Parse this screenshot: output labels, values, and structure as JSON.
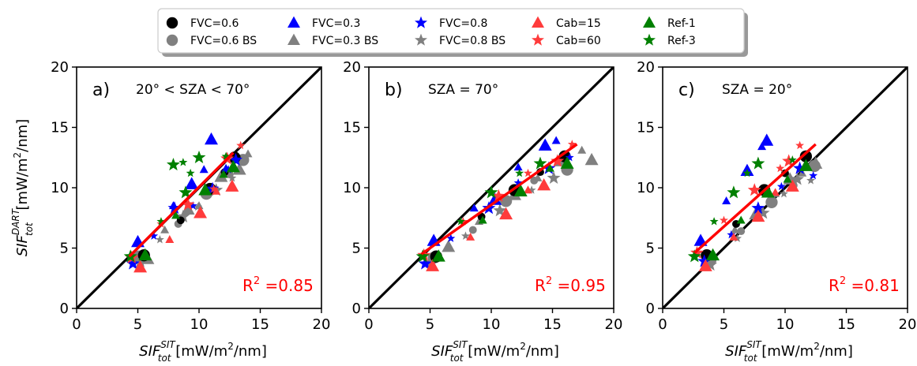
{
  "legend": {
    "entries": [
      {
        "label": "FVC=0.6",
        "color": "#000000",
        "marker": "circle"
      },
      {
        "label": "FVC=0.6 BS",
        "color": "#808080",
        "marker": "circle"
      },
      {
        "label": "FVC=0.3",
        "color": "#0000ff",
        "marker": "triangle"
      },
      {
        "label": "FVC=0.3 BS",
        "color": "#808080",
        "marker": "triangle"
      },
      {
        "label": "FVC=0.8",
        "color": "#0000ff",
        "marker": "star"
      },
      {
        "label": "FVC=0.8 BS",
        "color": "#808080",
        "marker": "star"
      },
      {
        "label": "Cab=15",
        "color": "#ff3b3b",
        "marker": "triangle"
      },
      {
        "label": "Cab=60",
        "color": "#ff3b3b",
        "marker": "star"
      },
      {
        "label": "Ref-1",
        "color": "#008000",
        "marker": "triangle"
      },
      {
        "label": "Ref-3",
        "color": "#008000",
        "marker": "star"
      }
    ]
  },
  "axes": {
    "ylabel_main": "SIF",
    "ylabel_sub": "tot",
    "ylabel_sup": "DART",
    "ylabel_unit": " [mW/m",
    "ylabel_unit_sup": "2",
    "ylabel_unit_end": "/nm]",
    "xlabel_main": "SIF",
    "xlabel_sub": "tot",
    "xlabel_sup": "SIT",
    "xlabel_unit": " [mW/m",
    "xlabel_unit_sup": "2",
    "xlabel_unit_end": "/nm]",
    "ticks": [
      "0",
      "5",
      "10",
      "15",
      "20"
    ]
  },
  "colors": {
    "one_to_one": "#000000",
    "regression": "#ff0000",
    "r2_text": "#ff0000"
  },
  "chart_data": [
    {
      "type": "scatter",
      "panel": "a)",
      "annotation": "20° < SZA < 70°",
      "r2_label": "R",
      "r2_sup": "2",
      "r2_value": " =0.85",
      "xlim": [
        0,
        20
      ],
      "ylim": [
        0,
        20
      ],
      "one_to_one": [
        [
          0,
          0
        ],
        [
          20,
          20
        ]
      ],
      "regression": [
        [
          4.3,
          4.3
        ],
        [
          12.8,
          12.9
        ]
      ],
      "series": [
        {
          "name": "FVC=0.6",
          "points": [
            [
              5.5,
              4.4
            ],
            [
              8.5,
              7.3
            ],
            [
              10.9,
              9.9
            ],
            [
              12.1,
              11.3
            ],
            [
              12.9,
              12.5
            ]
          ]
        },
        {
          "name": "FVC=0.6 BS",
          "points": [
            [
              5.1,
              4.3
            ],
            [
              8.3,
              7.0
            ],
            [
              10.6,
              9.5
            ],
            [
              12.5,
              11.1
            ],
            [
              13.6,
              12.3
            ]
          ]
        },
        {
          "name": "FVC=0.3",
          "points": [
            [
              5.0,
              5.5
            ],
            [
              7.9,
              8.5
            ],
            [
              9.4,
              10.3
            ],
            [
              10.4,
              11.5
            ],
            [
              11.0,
              14.0
            ],
            [
              12.2,
              11.6
            ]
          ]
        },
        {
          "name": "FVC=0.3 BS",
          "points": [
            [
              5.8,
              4.1
            ],
            [
              7.2,
              6.5
            ],
            [
              9.1,
              8.2
            ],
            [
              10.0,
              8.5
            ],
            [
              11.8,
              10.9
            ],
            [
              12.5,
              11.1
            ],
            [
              13.3,
              11.5
            ],
            [
              14.0,
              12.8
            ]
          ]
        },
        {
          "name": "FVC=0.8",
          "points": [
            [
              4.6,
              3.7
            ],
            [
              6.3,
              6.0
            ],
            [
              8.0,
              8.3
            ],
            [
              9.5,
              8.5
            ],
            [
              11.1,
              9.9
            ],
            [
              12.4,
              11.5
            ],
            [
              13.0,
              12.3
            ]
          ]
        },
        {
          "name": "FVC=0.8 BS",
          "points": [
            [
              5.2,
              3.9
            ],
            [
              6.8,
              5.7
            ],
            [
              8.7,
              7.6
            ],
            [
              9.9,
              8.4
            ],
            [
              11.4,
              9.8
            ],
            [
              12.7,
              10.8
            ]
          ]
        },
        {
          "name": "Cab=15",
          "points": [
            [
              5.2,
              3.4
            ],
            [
              7.6,
              5.7
            ],
            [
              10.1,
              7.9
            ],
            [
              11.4,
              9.7
            ],
            [
              12.7,
              10.1
            ]
          ]
        },
        {
          "name": "Cab=60",
          "points": [
            [
              4.5,
              4.2
            ],
            [
              6.9,
              7.0
            ],
            [
              9.1,
              8.6
            ],
            [
              11.2,
              9.9
            ],
            [
              12.3,
              12.4
            ],
            [
              13.4,
              13.5
            ]
          ]
        },
        {
          "name": "Ref-1",
          "points": [
            [
              5.6,
              4.4
            ],
            [
              8.1,
              7.7
            ],
            [
              10.5,
              9.8
            ],
            [
              12.0,
              11.1
            ],
            [
              12.8,
              11.7
            ]
          ]
        },
        {
          "name": "Ref-3",
          "points": [
            [
              4.4,
              4.3
            ],
            [
              6.9,
              7.2
            ],
            [
              8.9,
              9.6
            ],
            [
              9.3,
              11.2
            ],
            [
              7.9,
              11.9
            ],
            [
              8.7,
              12.1
            ],
            [
              10.0,
              12.5
            ],
            [
              12.2,
              12.6
            ]
          ]
        }
      ]
    },
    {
      "type": "scatter",
      "panel": "b)",
      "annotation": "SZA = 70°",
      "r2_label": "R",
      "r2_sup": "2",
      "r2_value": " =0.95",
      "xlim": [
        0,
        20
      ],
      "ylim": [
        0,
        20
      ],
      "one_to_one": [
        [
          0,
          0
        ],
        [
          20,
          20
        ]
      ],
      "regression": [
        [
          4.3,
          4.5
        ],
        [
          17.0,
          13.6
        ]
      ],
      "series": [
        {
          "name": "FVC=0.6",
          "points": [
            [
              5.5,
              4.3
            ],
            [
              9.2,
              7.6
            ],
            [
              11.9,
              9.8
            ],
            [
              14.0,
              11.3
            ],
            [
              16.0,
              12.6
            ]
          ]
        },
        {
          "name": "FVC=0.6 BS",
          "points": [
            [
              5.3,
              4.2
            ],
            [
              8.5,
              6.5
            ],
            [
              11.2,
              8.9
            ],
            [
              13.5,
              10.6
            ],
            [
              16.2,
              11.5
            ]
          ]
        },
        {
          "name": "FVC=0.3",
          "points": [
            [
              5.3,
              5.6
            ],
            [
              8.6,
              8.3
            ],
            [
              10.3,
              9.0
            ],
            [
              12.2,
              11.7
            ],
            [
              14.4,
              13.5
            ],
            [
              15.3,
              13.9
            ]
          ]
        },
        {
          "name": "FVC=0.3 BS",
          "points": [
            [
              6.5,
              5.1
            ],
            [
              9.0,
              7.2
            ],
            [
              11.9,
              9.4
            ],
            [
              13.8,
              10.8
            ],
            [
              15.7,
              12.2
            ],
            [
              17.4,
              13.1
            ],
            [
              18.2,
              12.3
            ]
          ]
        },
        {
          "name": "FVC=0.8",
          "points": [
            [
              4.6,
              3.7
            ],
            [
              6.7,
              5.8
            ],
            [
              9.8,
              8.3
            ],
            [
              12.2,
              10.4
            ],
            [
              14.7,
              11.6
            ],
            [
              16.4,
              12.5
            ]
          ]
        },
        {
          "name": "FVC=0.8 BS",
          "points": [
            [
              5.0,
              3.8
            ],
            [
              7.9,
              6.0
            ],
            [
              10.7,
              8.1
            ],
            [
              13.3,
              9.8
            ],
            [
              15.1,
              10.8
            ]
          ]
        },
        {
          "name": "Cab=15",
          "points": [
            [
              5.2,
              3.5
            ],
            [
              8.3,
              5.9
            ],
            [
              11.2,
              7.8
            ],
            [
              13.0,
              9.8
            ],
            [
              14.3,
              10.2
            ]
          ]
        },
        {
          "name": "Cab=60",
          "points": [
            [
              4.5,
              4.4
            ],
            [
              7.7,
              7.2
            ],
            [
              10.6,
              9.3
            ],
            [
              13.0,
              11.2
            ],
            [
              15.4,
              12.2
            ],
            [
              16.6,
              13.6
            ]
          ]
        },
        {
          "name": "Ref-1",
          "points": [
            [
              5.7,
              4.3
            ],
            [
              9.3,
              7.3
            ],
            [
              12.4,
              9.7
            ],
            [
              14.8,
              11.6
            ],
            [
              16.2,
              12.0
            ]
          ]
        },
        {
          "name": "Ref-3",
          "points": [
            [
              4.4,
              4.3
            ],
            [
              7.5,
              7.2
            ],
            [
              10.0,
              9.6
            ],
            [
              12.3,
              11.2
            ],
            [
              14.0,
              12.0
            ]
          ]
        }
      ]
    },
    {
      "type": "scatter",
      "panel": "c)",
      "annotation": "SZA = 20°",
      "r2_label": "R",
      "r2_sup": "2",
      "r2_value": " =0.81",
      "xlim": [
        0,
        20
      ],
      "ylim": [
        0,
        20
      ],
      "one_to_one": [
        [
          0,
          0
        ],
        [
          20,
          20
        ]
      ],
      "regression": [
        [
          2.6,
          4.6
        ],
        [
          12.5,
          13.6
        ]
      ],
      "series": [
        {
          "name": "FVC=0.6",
          "points": [
            [
              3.6,
              4.4
            ],
            [
              6.0,
              7.0
            ],
            [
              8.3,
              9.8
            ],
            [
              10.0,
              11.2
            ],
            [
              11.7,
              12.6
            ]
          ]
        },
        {
          "name": "FVC=0.6 BS",
          "points": [
            [
              3.9,
              4.0
            ],
            [
              6.4,
              6.4
            ],
            [
              8.9,
              8.8
            ],
            [
              10.7,
              10.2
            ],
            [
              12.4,
              11.8
            ]
          ]
        },
        {
          "name": "FVC=0.3",
          "points": [
            [
              3.1,
              5.6
            ],
            [
              5.2,
              8.9
            ],
            [
              6.9,
              11.4
            ],
            [
              8.1,
              13.4
            ],
            [
              8.5,
              13.9
            ]
          ]
        },
        {
          "name": "FVC=0.3 BS",
          "points": [
            [
              3.6,
              3.9
            ],
            [
              5.9,
              6.5
            ],
            [
              7.6,
              7.8
            ],
            [
              9.2,
              9.5
            ],
            [
              10.4,
              10.7
            ],
            [
              11.4,
              11.2
            ],
            [
              12.5,
              12.0
            ]
          ]
        },
        {
          "name": "FVC=0.8",
          "points": [
            [
              3.4,
              3.9
            ],
            [
              5.6,
              6.1
            ],
            [
              7.8,
              8.3
            ],
            [
              9.7,
              10.1
            ],
            [
              11.2,
              11.6
            ],
            [
              12.3,
              11.0
            ]
          ]
        },
        {
          "name": "FVC=0.8 BS",
          "points": [
            [
              3.9,
              3.6
            ],
            [
              6.1,
              5.8
            ],
            [
              8.2,
              7.9
            ],
            [
              9.9,
              9.5
            ],
            [
              11.0,
              10.7
            ],
            [
              12.1,
              10.6
            ]
          ]
        },
        {
          "name": "Cab=15",
          "points": [
            [
              3.5,
              3.5
            ],
            [
              5.8,
              5.9
            ],
            [
              7.8,
              7.6
            ],
            [
              9.2,
              9.6
            ],
            [
              10.6,
              10.1
            ]
          ]
        },
        {
          "name": "Cab=60",
          "points": [
            [
              2.8,
              4.6
            ],
            [
              5.0,
              7.3
            ],
            [
              7.5,
              9.8
            ],
            [
              9.6,
              11.6
            ],
            [
              10.3,
              12.2
            ],
            [
              11.2,
              13.5
            ]
          ]
        },
        {
          "name": "Ref-1",
          "points": [
            [
              4.1,
              4.4
            ],
            [
              6.4,
              7.3
            ],
            [
              8.6,
              9.6
            ],
            [
              10.2,
              10.7
            ],
            [
              11.7,
              11.8
            ]
          ]
        },
        {
          "name": "Ref-3",
          "points": [
            [
              2.6,
              4.3
            ],
            [
              4.2,
              7.2
            ],
            [
              5.8,
              9.6
            ],
            [
              6.9,
              11.2
            ],
            [
              7.8,
              12.0
            ],
            [
              10.6,
              12.3
            ]
          ]
        }
      ]
    }
  ]
}
